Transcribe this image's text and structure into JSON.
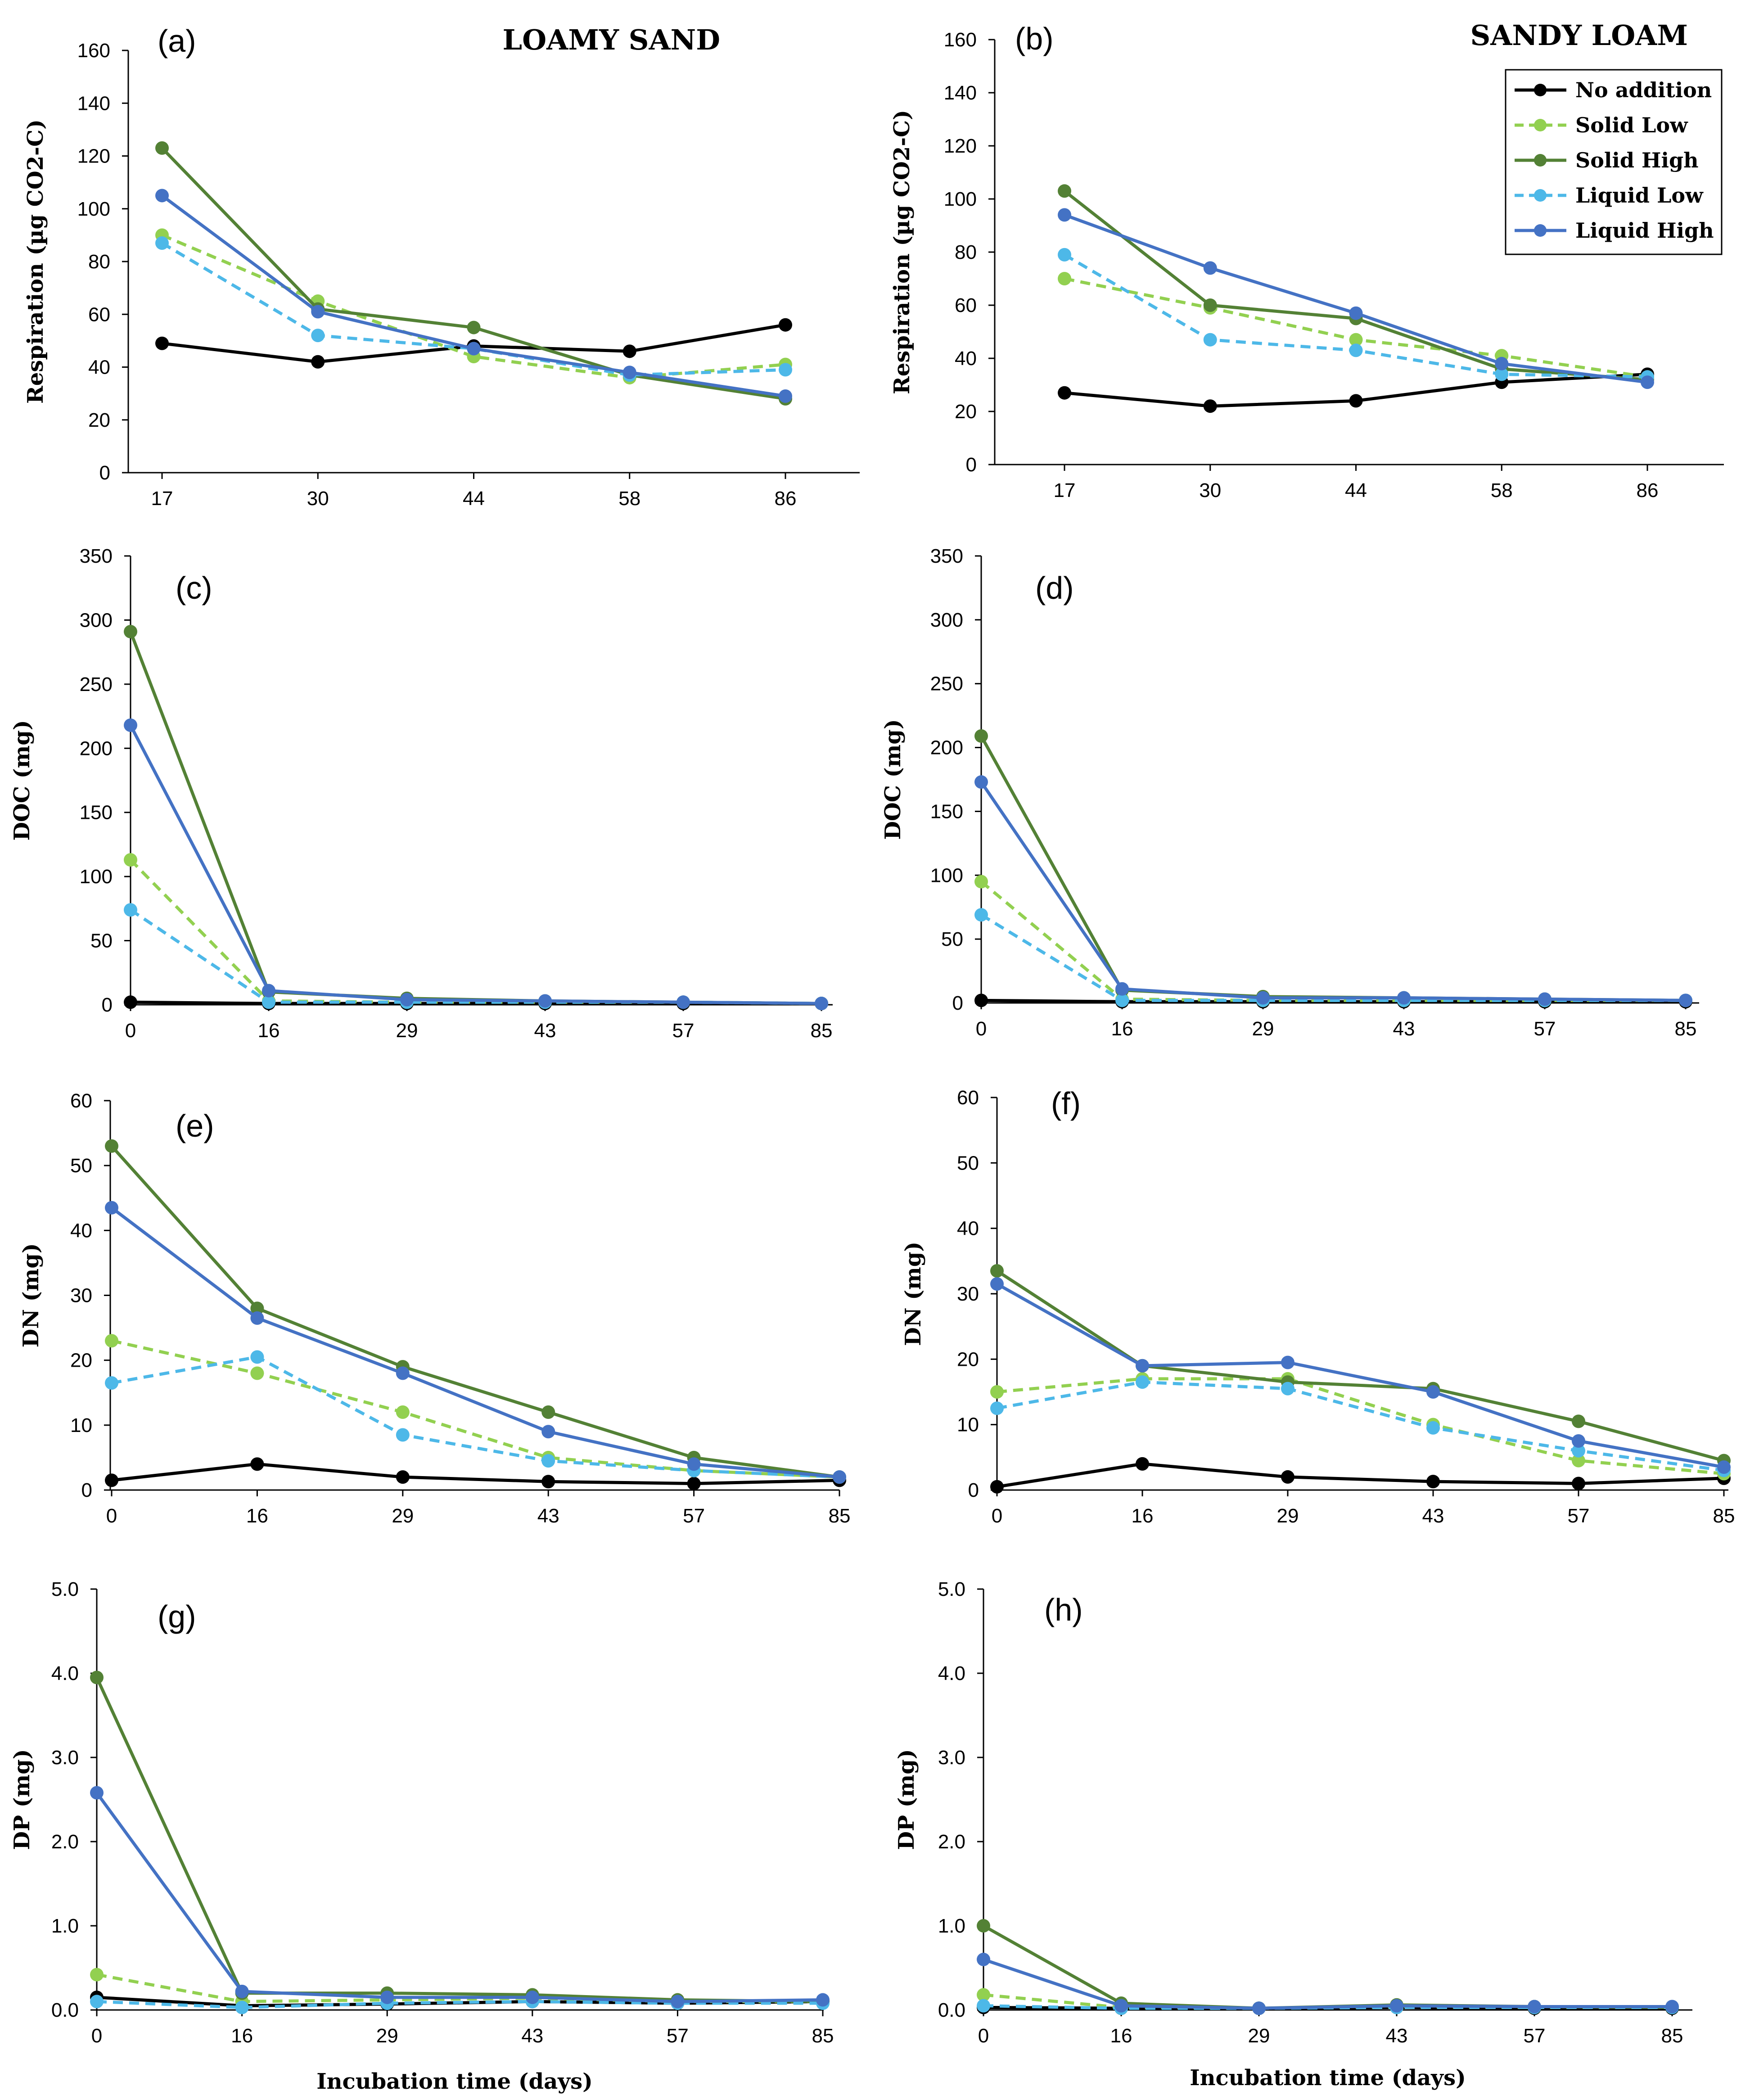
{
  "figure": {
    "soil_titles": {
      "left": "LOAMY SAND",
      "right": "SANDY LOAM"
    },
    "xlabel": "Incubation time (days)"
  },
  "series": [
    {
      "name": "No addition",
      "color": "#000000",
      "dashed": false
    },
    {
      "name": "Solid Low",
      "color": "#92d050",
      "dashed": true
    },
    {
      "name": "Solid High",
      "color": "#538135",
      "dashed": false
    },
    {
      "name": "Liquid Low",
      "color": "#4db8e8",
      "dashed": true
    },
    {
      "name": "Liquid High",
      "color": "#4472c4",
      "dashed": false
    }
  ],
  "chart_data": [
    {
      "id": "a",
      "panel_label": "(a)",
      "type": "line",
      "x": [
        "17",
        "30",
        "44",
        "58",
        "86"
      ],
      "ylabel": "Respiration (µg CO2-C)",
      "ylim": [
        0,
        160
      ],
      "yticks": [
        0,
        20,
        40,
        60,
        80,
        100,
        120,
        140,
        160
      ],
      "ydecimals": 0,
      "series": [
        {
          "name": "No addition",
          "values": [
            49,
            42,
            48,
            46,
            56
          ]
        },
        {
          "name": "Solid Low",
          "values": [
            90,
            65,
            44,
            36,
            41
          ]
        },
        {
          "name": "Solid High",
          "values": [
            123,
            62,
            55,
            37,
            28
          ]
        },
        {
          "name": "Liquid Low",
          "values": [
            87,
            52,
            47,
            37,
            39
          ]
        },
        {
          "name": "Liquid High",
          "values": [
            105,
            61,
            47,
            38,
            29
          ]
        }
      ]
    },
    {
      "id": "b",
      "panel_label": "(b)",
      "type": "line",
      "x": [
        "17",
        "30",
        "44",
        "58",
        "86"
      ],
      "ylabel": "Respiration (µg CO2-C)",
      "ylim": [
        0,
        160
      ],
      "yticks": [
        0,
        20,
        40,
        60,
        80,
        100,
        120,
        140,
        160
      ],
      "ydecimals": 0,
      "series": [
        {
          "name": "No addition",
          "values": [
            27,
            22,
            24,
            31,
            34
          ]
        },
        {
          "name": "Solid Low",
          "values": [
            70,
            59,
            47,
            41,
            33
          ]
        },
        {
          "name": "Solid High",
          "values": [
            103,
            60,
            55,
            36,
            32
          ]
        },
        {
          "name": "Liquid Low",
          "values": [
            79,
            47,
            43,
            34,
            33
          ]
        },
        {
          "name": "Liquid High",
          "values": [
            94,
            74,
            57,
            38,
            31
          ]
        }
      ]
    },
    {
      "id": "c",
      "panel_label": "(c)",
      "type": "line",
      "x": [
        "0",
        "16",
        "29",
        "43",
        "57",
        "85"
      ],
      "ylabel": "DOC (mg)",
      "ylim": [
        0,
        350
      ],
      "yticks": [
        0,
        50,
        100,
        150,
        200,
        250,
        300,
        350
      ],
      "ydecimals": 0,
      "series": [
        {
          "name": "No addition",
          "values": [
            2,
            1,
            1,
            1,
            1,
            1
          ]
        },
        {
          "name": "Solid Low",
          "values": [
            113,
            3,
            2,
            2,
            2,
            1
          ]
        },
        {
          "name": "Solid High",
          "values": [
            291,
            10,
            5,
            3,
            2,
            1
          ]
        },
        {
          "name": "Liquid Low",
          "values": [
            74,
            2,
            2,
            2,
            2,
            1
          ]
        },
        {
          "name": "Liquid High",
          "values": [
            218,
            11,
            4,
            3,
            2,
            1
          ]
        }
      ]
    },
    {
      "id": "d",
      "panel_label": "(d)",
      "type": "line",
      "x": [
        "0",
        "16",
        "29",
        "43",
        "57",
        "85"
      ],
      "ylabel": "DOC (mg)",
      "ylim": [
        0,
        350
      ],
      "yticks": [
        0,
        50,
        100,
        150,
        200,
        250,
        300,
        350
      ],
      "ydecimals": 0,
      "series": [
        {
          "name": "No addition",
          "values": [
            2,
            1,
            1,
            1,
            1,
            1
          ]
        },
        {
          "name": "Solid Low",
          "values": [
            95,
            3,
            2,
            2,
            2,
            2
          ]
        },
        {
          "name": "Solid High",
          "values": [
            209,
            10,
            5,
            4,
            3,
            2
          ]
        },
        {
          "name": "Liquid Low",
          "values": [
            69,
            2,
            2,
            2,
            2,
            2
          ]
        },
        {
          "name": "Liquid High",
          "values": [
            173,
            11,
            4,
            4,
            3,
            2
          ]
        }
      ]
    },
    {
      "id": "e",
      "panel_label": "(e)",
      "type": "line",
      "x": [
        "0",
        "16",
        "29",
        "43",
        "57",
        "85"
      ],
      "ylabel": "DN (mg)",
      "ylim": [
        0,
        60
      ],
      "yticks": [
        0,
        10,
        20,
        30,
        40,
        50,
        60
      ],
      "ydecimals": 0,
      "series": [
        {
          "name": "No addition",
          "values": [
            1.5,
            4,
            2,
            1.3,
            1,
            1.5
          ]
        },
        {
          "name": "Solid Low",
          "values": [
            23,
            18,
            12,
            5,
            3,
            2
          ]
        },
        {
          "name": "Solid High",
          "values": [
            53,
            28,
            19,
            12,
            5,
            2
          ]
        },
        {
          "name": "Liquid Low",
          "values": [
            16.5,
            20.5,
            8.5,
            4.5,
            3,
            2
          ]
        },
        {
          "name": "Liquid High",
          "values": [
            43.5,
            26.5,
            18,
            9,
            4,
            2
          ]
        }
      ]
    },
    {
      "id": "f",
      "panel_label": "(f)",
      "type": "line",
      "x": [
        "0",
        "16",
        "29",
        "43",
        "57",
        "85"
      ],
      "ylabel": "DN (mg)",
      "ylim": [
        0,
        60
      ],
      "yticks": [
        0,
        10,
        20,
        30,
        40,
        50,
        60
      ],
      "ydecimals": 0,
      "series": [
        {
          "name": "No addition",
          "values": [
            0.5,
            4,
            2,
            1.3,
            1,
            1.8
          ]
        },
        {
          "name": "Solid Low",
          "values": [
            15,
            17,
            17,
            10,
            4.5,
            2.5
          ]
        },
        {
          "name": "Solid High",
          "values": [
            33.5,
            19,
            16.5,
            15.5,
            10.5,
            4.5
          ]
        },
        {
          "name": "Liquid Low",
          "values": [
            12.5,
            16.5,
            15.5,
            9.5,
            6,
            3
          ]
        },
        {
          "name": "Liquid High",
          "values": [
            31.5,
            19,
            19.5,
            15,
            7.5,
            3.5
          ]
        }
      ]
    },
    {
      "id": "g",
      "panel_label": "(g)",
      "type": "line",
      "x": [
        "0",
        "16",
        "29",
        "43",
        "57",
        "85"
      ],
      "ylabel": "DP (mg)",
      "ylim": [
        0,
        5
      ],
      "yticks": [
        0,
        1,
        2,
        3,
        4,
        5
      ],
      "ydecimals": 1,
      "series": [
        {
          "name": "No addition",
          "values": [
            0.15,
            0.05,
            0.07,
            0.1,
            0.08,
            0.1
          ]
        },
        {
          "name": "Solid Low",
          "values": [
            0.42,
            0.1,
            0.12,
            0.14,
            0.1,
            0.1
          ]
        },
        {
          "name": "Solid High",
          "values": [
            3.95,
            0.2,
            0.2,
            0.18,
            0.12,
            0.1
          ]
        },
        {
          "name": "Liquid Low",
          "values": [
            0.1,
            0.03,
            0.08,
            0.1,
            0.08,
            0.08
          ]
        },
        {
          "name": "Liquid High",
          "values": [
            2.58,
            0.22,
            0.15,
            0.15,
            0.1,
            0.12
          ]
        }
      ]
    },
    {
      "id": "h",
      "panel_label": "(h)",
      "type": "line",
      "x": [
        "0",
        "16",
        "29",
        "43",
        "57",
        "85"
      ],
      "ylabel": "DP (mg)",
      "ylim": [
        0,
        5
      ],
      "yticks": [
        0,
        1,
        2,
        3,
        4,
        5
      ],
      "ydecimals": 1,
      "series": [
        {
          "name": "No addition",
          "values": [
            0.03,
            0.02,
            0.02,
            0.03,
            0.02,
            0.02
          ]
        },
        {
          "name": "Solid Low",
          "values": [
            0.18,
            0.03,
            0.02,
            0.04,
            0.03,
            0.03
          ]
        },
        {
          "name": "Solid High",
          "values": [
            1.0,
            0.08,
            0.02,
            0.06,
            0.04,
            0.03
          ]
        },
        {
          "name": "Liquid Low",
          "values": [
            0.05,
            0.02,
            0.02,
            0.03,
            0.03,
            0.03
          ]
        },
        {
          "name": "Liquid High",
          "values": [
            0.6,
            0.05,
            0.02,
            0.05,
            0.04,
            0.04
          ]
        }
      ]
    }
  ]
}
